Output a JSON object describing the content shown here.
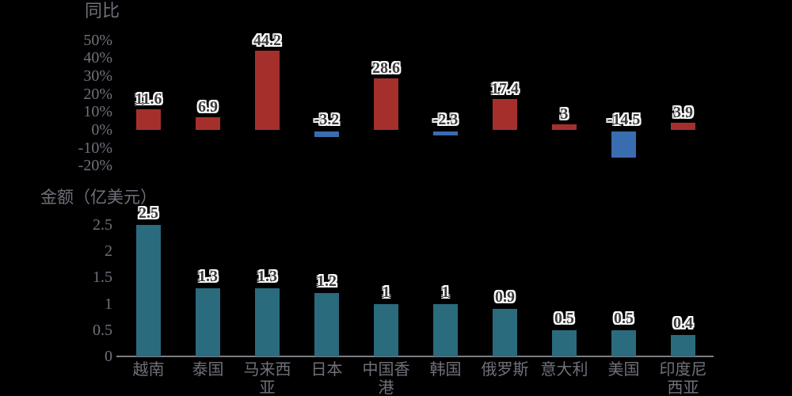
{
  "background": "#000000",
  "chart_data": [
    {
      "type": "bar",
      "title": "同比",
      "categories": [
        "越南",
        "泰国",
        "马来西亚",
        "日本",
        "中国香港",
        "韩国",
        "俄罗斯",
        "意大利",
        "美国",
        "印度尼西亚"
      ],
      "values": [
        11.6,
        6.9,
        44.2,
        -3.2,
        28.6,
        -2.3,
        17.4,
        3,
        -14.5,
        3.9
      ],
      "value_labels": [
        "11.6",
        "6.9",
        "44.2",
        "-3.2",
        "28.6",
        "-2.3",
        "17.4",
        "3",
        "-14.5",
        "3.9"
      ],
      "ytick_labels": [
        "50%",
        "40%",
        "30%",
        "20%",
        "10%",
        "0%",
        "-10%",
        "-20%"
      ],
      "ytick_values": [
        50,
        40,
        30,
        20,
        10,
        0,
        -10,
        -20
      ],
      "ylim": [
        -20,
        50
      ],
      "legend_position": "none",
      "grid": false,
      "x_labels_shown": false,
      "positive_color": "#a5302b",
      "negative_color": "#3a6cb0"
    },
    {
      "type": "bar",
      "title": "金额（亿美元）",
      "categories": [
        "越南",
        "泰国",
        "马来西亚",
        "日本",
        "中国香港",
        "韩国",
        "俄罗斯",
        "意大利",
        "美国",
        "印度尼西亚"
      ],
      "values": [
        2.5,
        1.3,
        1.3,
        1.2,
        1,
        1,
        0.9,
        0.5,
        0.5,
        0.4
      ],
      "value_labels": [
        "2.5",
        "1.3",
        "1.3",
        "1.2",
        "1",
        "1",
        "0.9",
        "0.5",
        "0.5",
        "0.4"
      ],
      "ytick_labels": [
        "2.5",
        "2",
        "1.5",
        "1",
        "0.5",
        "0"
      ],
      "ytick_values": [
        2.5,
        2,
        1.5,
        1,
        0.5,
        0
      ],
      "ylim": [
        0,
        2.5
      ],
      "legend_position": "none",
      "grid": false,
      "x_labels_shown": true,
      "bar_color": "#2a6b7e"
    }
  ],
  "colors": {
    "background": "#000000",
    "axis_text": "#70707a",
    "axis_line": "#7d7d85",
    "value_text": "#3a3a3a",
    "value_outline": "#ffffff"
  }
}
